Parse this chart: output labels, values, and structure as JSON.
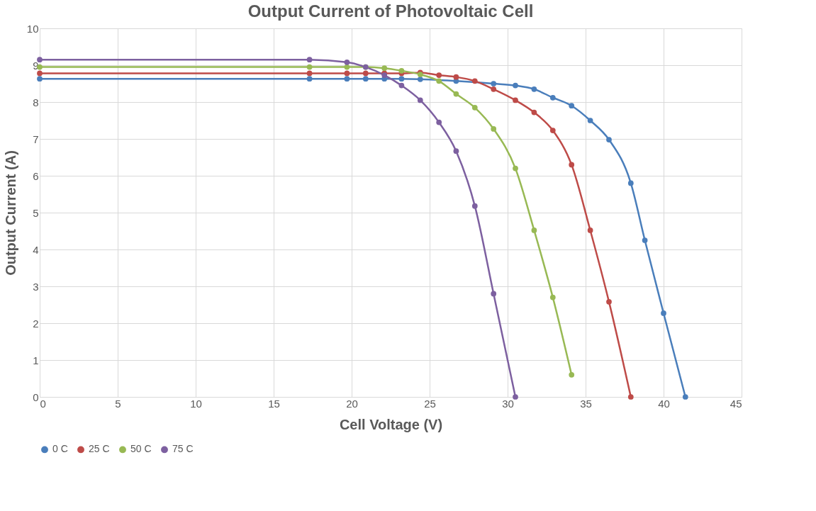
{
  "chart_data": {
    "type": "line",
    "title": "Output Current of Photovoltaic Cell",
    "xlabel": "Cell Voltage (V)",
    "ylabel": "Output Current (A)",
    "xlim": [
      0,
      45
    ],
    "xticks": [
      0,
      5,
      10,
      15,
      20,
      25,
      30,
      35,
      40,
      45
    ],
    "ylim": [
      0,
      10
    ],
    "yticks": [
      0,
      1,
      2,
      3,
      4,
      5,
      6,
      7,
      8,
      9,
      10
    ],
    "grid": true,
    "legend": "bottom",
    "marker": "circle",
    "line_style": "solid",
    "series": [
      {
        "name": "0 C",
        "color": "#4a7ebb",
        "x": [
          0,
          17.3,
          19.7,
          20.9,
          22.1,
          23.2,
          24.4,
          26.7,
          29.1,
          30.5,
          31.7,
          32.9,
          34.1,
          35.3,
          36.5,
          37.9,
          38.8,
          40.0,
          41.4
        ],
        "values": [
          8.63,
          8.63,
          8.63,
          8.63,
          8.63,
          8.63,
          8.62,
          8.57,
          8.5,
          8.45,
          8.35,
          8.12,
          7.9,
          7.5,
          6.98,
          5.8,
          4.25,
          2.27,
          0
        ]
      },
      {
        "name": "25 C",
        "color": "#be4b48",
        "x": [
          0,
          17.3,
          19.7,
          20.9,
          22.1,
          23.2,
          24.4,
          25.6,
          26.7,
          27.9,
          29.1,
          30.5,
          31.7,
          32.9,
          34.1,
          35.3,
          36.5,
          37.9
        ],
        "values": [
          8.78,
          8.78,
          8.78,
          8.78,
          8.78,
          8.78,
          8.8,
          8.73,
          8.68,
          8.57,
          8.35,
          8.05,
          7.72,
          7.23,
          6.3,
          4.52,
          2.58,
          0
        ]
      },
      {
        "name": "50 C",
        "color": "#98b954",
        "x": [
          0,
          17.3,
          19.7,
          20.9,
          22.1,
          23.2,
          24.4,
          25.6,
          26.7,
          27.9,
          29.1,
          30.5,
          31.7,
          32.9,
          34.1
        ],
        "values": [
          8.95,
          8.95,
          8.95,
          8.95,
          8.92,
          8.85,
          8.75,
          8.57,
          8.22,
          7.85,
          7.27,
          6.2,
          4.52,
          2.7,
          0.6
        ]
      },
      {
        "name": "75 C",
        "color": "#7d60a0",
        "x": [
          0,
          17.3,
          19.7,
          20.9,
          22.1,
          23.2,
          24.4,
          25.6,
          26.7,
          27.9,
          29.1,
          30.5
        ],
        "values": [
          9.15,
          9.15,
          9.08,
          8.95,
          8.73,
          8.45,
          8.05,
          7.45,
          6.67,
          5.18,
          2.8,
          0
        ]
      }
    ]
  }
}
